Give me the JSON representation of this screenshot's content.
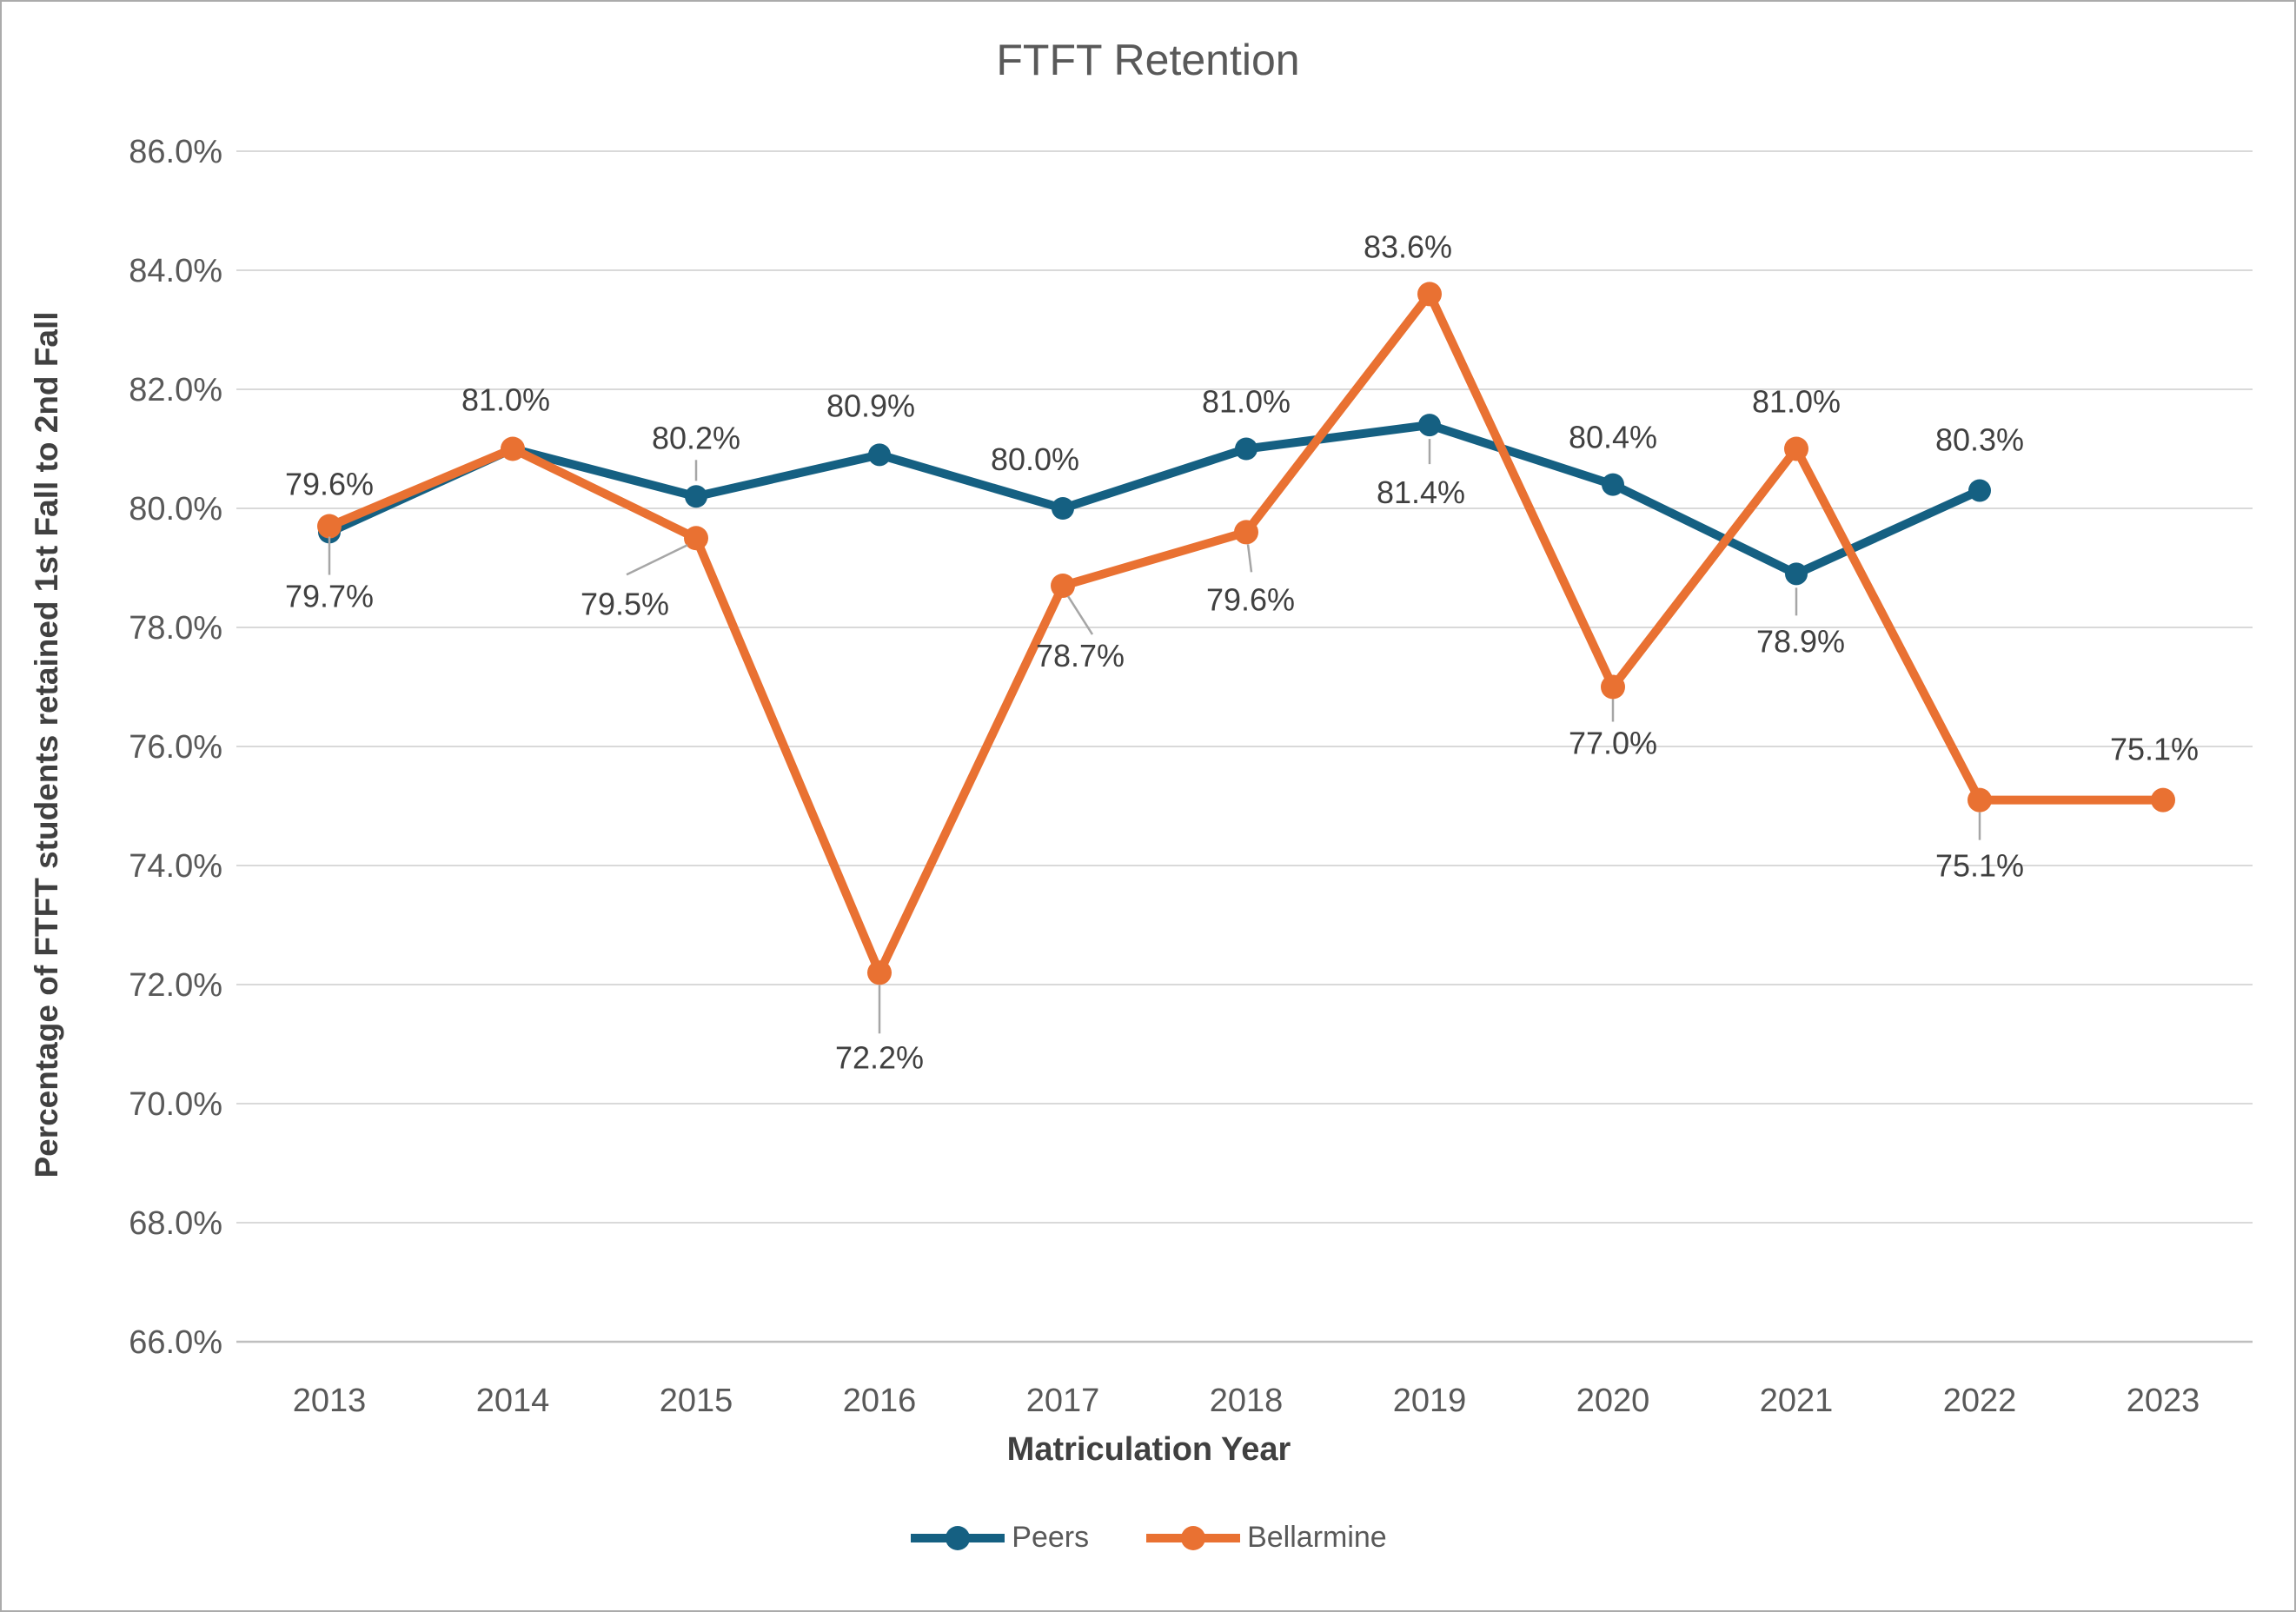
{
  "title": "FTFT Retention",
  "colors": {
    "peers": "#156082",
    "bellarmine": "#E97132",
    "gridline": "#D9D9D9",
    "axis_line": "#BFBFBF",
    "leader_line": "#A6A6A6",
    "tick_label": "#595959",
    "data_label": "#404040",
    "title_text": "#595959",
    "axis_title_text": "#404040",
    "background": "#FFFFFF"
  },
  "legend": {
    "items": [
      {
        "name": "Peers",
        "color": "#156082"
      },
      {
        "name": "Bellarmine",
        "color": "#E97132"
      }
    ],
    "position": "bottom-center"
  },
  "chart_data": {
    "type": "line",
    "title": "FTFT Retention",
    "xlabel": "Matriculation Year",
    "ylabel": "Percentage of FTFT students retained 1st Fall to 2nd Fall",
    "categories": [
      2013,
      2014,
      2015,
      2016,
      2017,
      2018,
      2019,
      2020,
      2021,
      2022,
      2023
    ],
    "ylim": [
      66.0,
      86.0
    ],
    "ytick_step": 2.0,
    "ytick_labels": [
      "86.0%",
      "84.0%",
      "82.0%",
      "80.0%",
      "78.0%",
      "76.0%",
      "74.0%",
      "72.0%",
      "70.0%",
      "68.0%",
      "66.0%"
    ],
    "grid": "horizontal",
    "legend_position": "bottom",
    "series": [
      {
        "name": "Peers",
        "color": "#156082",
        "marker": "circle",
        "marker_radius": 13,
        "line_width": 10,
        "points": [
          {
            "x": 2013,
            "y": 79.6,
            "label": "79.6%",
            "label_dx": 0,
            "label_dy": -43,
            "leader": null
          },
          {
            "x": 2014,
            "y": 81.0,
            "label": "81.0%",
            "label_dx": -8,
            "label_dy": -44,
            "leader": null
          },
          {
            "x": 2015,
            "y": 80.2,
            "label": "80.2%",
            "label_dx": 0,
            "label_dy": -55,
            "leader": [
              0,
              -18,
              0,
              -42
            ]
          },
          {
            "x": 2016,
            "y": 80.9,
            "label": "80.9%",
            "label_dx": -10,
            "label_dy": -44,
            "leader": null
          },
          {
            "x": 2017,
            "y": 80.0,
            "label": "80.0%",
            "label_dx": -32,
            "label_dy": -44,
            "leader": null
          },
          {
            "x": 2018,
            "y": 81.0,
            "label": "81.0%",
            "label_dx": 0,
            "label_dy": -42,
            "leader": null
          },
          {
            "x": 2019,
            "y": 81.4,
            "label": "81.4%",
            "label_dx": -10,
            "label_dy": 90,
            "leader": [
              0,
              16,
              0,
              45
            ]
          },
          {
            "x": 2020,
            "y": 80.4,
            "label": "80.4%",
            "label_dx": 0,
            "label_dy": -42,
            "leader": null
          },
          {
            "x": 2021,
            "y": 78.9,
            "label": "78.9%",
            "label_dx": 5,
            "label_dy": 90,
            "leader": [
              0,
              16,
              0,
              48
            ]
          },
          {
            "x": 2022,
            "y": 80.3,
            "label": "80.3%",
            "label_dx": 0,
            "label_dy": -46,
            "leader": null
          },
          {
            "x": 2023,
            "y": null,
            "label": null,
            "label_dx": 0,
            "label_dy": 0,
            "leader": null
          }
        ]
      },
      {
        "name": "Bellarmine",
        "color": "#E97132",
        "marker": "circle",
        "marker_radius": 14,
        "line_width": 10,
        "points": [
          {
            "x": 2013,
            "y": 79.7,
            "label": "79.7%",
            "label_dx": 0,
            "label_dy": 93,
            "leader": [
              0,
              12,
              0,
              56
            ]
          },
          {
            "x": 2014,
            "y": 81.0,
            "label": null,
            "label_dx": 0,
            "label_dy": 0,
            "leader": null
          },
          {
            "x": 2015,
            "y": 79.5,
            "label": "79.5%",
            "label_dx": -82,
            "label_dy": 88,
            "leader": [
              -10,
              8,
              -80,
              42
            ]
          },
          {
            "x": 2016,
            "y": 72.2,
            "label": "72.2%",
            "label_dx": 0,
            "label_dy": 110,
            "leader": [
              0,
              14,
              0,
              70
            ]
          },
          {
            "x": 2017,
            "y": 78.7,
            "label": "78.7%",
            "label_dx": 20,
            "label_dy": 93,
            "leader": [
              6,
              12,
              34,
              56
            ]
          },
          {
            "x": 2018,
            "y": 79.6,
            "label": "79.6%",
            "label_dx": 5,
            "label_dy": 90,
            "leader": [
              2,
              14,
              6,
              46
            ]
          },
          {
            "x": 2019,
            "y": 83.6,
            "label": "83.6%",
            "label_dx": -25,
            "label_dy": -42,
            "leader": null
          },
          {
            "x": 2020,
            "y": 77.0,
            "label": "77.0%",
            "label_dx": 0,
            "label_dy": 77,
            "leader": [
              0,
              14,
              0,
              40
            ]
          },
          {
            "x": 2021,
            "y": 81.0,
            "label": "81.0%",
            "label_dx": 0,
            "label_dy": -42,
            "leader": null
          },
          {
            "x": 2022,
            "y": 75.1,
            "label": "75.1%",
            "label_dx": 0,
            "label_dy": 88,
            "leader": [
              0,
              14,
              0,
              46
            ]
          },
          {
            "x": 2023,
            "y": 75.1,
            "label": "75.1%",
            "label_dx": -10,
            "label_dy": -46,
            "leader": null
          }
        ]
      }
    ]
  }
}
